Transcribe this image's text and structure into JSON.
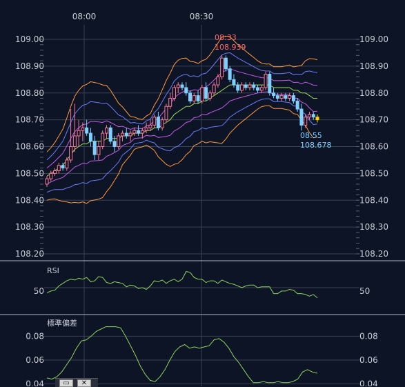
{
  "chart_data": [
    {
      "type": "candlestick",
      "time_labels": [
        "08:00",
        "08:30"
      ],
      "y_ticks": [
        "109.00",
        "108.90",
        "108.80",
        "108.70",
        "108.60",
        "108.50",
        "108.40",
        "108.30",
        "108.20"
      ],
      "ylim": [
        108.2,
        109.02
      ],
      "annotations": [
        {
          "time": "08:33",
          "value": "108.939",
          "color": "#ff6b6b"
        },
        {
          "time": "08:55",
          "value": "108.678",
          "color": "#7fd0ff"
        }
      ],
      "candles": [
        [
          108.46,
          108.49,
          108.45,
          108.48
        ],
        [
          108.48,
          108.51,
          108.47,
          108.5
        ],
        [
          108.5,
          108.52,
          108.49,
          108.51
        ],
        [
          108.51,
          108.54,
          108.5,
          108.53
        ],
        [
          108.53,
          108.54,
          108.51,
          108.52
        ],
        [
          108.52,
          108.56,
          108.51,
          108.55
        ],
        [
          108.55,
          108.74,
          108.54,
          108.6
        ],
        [
          108.6,
          108.76,
          108.58,
          108.64
        ],
        [
          108.64,
          108.7,
          108.6,
          108.66
        ],
        [
          108.66,
          108.69,
          108.62,
          108.67
        ],
        [
          108.67,
          108.7,
          108.64,
          108.65
        ],
        [
          108.65,
          108.67,
          108.6,
          108.62
        ],
        [
          108.62,
          108.64,
          108.55,
          108.57
        ],
        [
          108.57,
          108.62,
          108.55,
          108.6
        ],
        [
          108.6,
          108.66,
          108.59,
          108.65
        ],
        [
          108.65,
          108.68,
          108.63,
          108.67
        ],
        [
          108.67,
          108.68,
          108.61,
          108.62
        ],
        [
          108.62,
          108.64,
          108.58,
          108.6
        ],
        [
          108.6,
          108.65,
          108.59,
          108.64
        ],
        [
          108.64,
          108.66,
          108.62,
          108.65
        ],
        [
          108.65,
          108.67,
          108.63,
          108.64
        ],
        [
          108.64,
          108.66,
          108.62,
          108.65
        ],
        [
          108.65,
          108.67,
          108.64,
          108.66
        ],
        [
          108.66,
          108.68,
          108.64,
          108.65
        ],
        [
          108.65,
          108.67,
          108.63,
          108.66
        ],
        [
          108.66,
          108.69,
          108.65,
          108.67
        ],
        [
          108.67,
          108.7,
          108.66,
          108.68
        ],
        [
          108.68,
          108.72,
          108.67,
          108.71
        ],
        [
          108.71,
          108.73,
          108.66,
          108.67
        ],
        [
          108.67,
          108.71,
          108.66,
          108.7
        ],
        [
          108.7,
          108.76,
          108.69,
          108.75
        ],
        [
          108.75,
          108.8,
          108.74,
          108.78
        ],
        [
          108.78,
          108.83,
          108.77,
          108.82
        ],
        [
          108.82,
          108.84,
          108.8,
          108.83
        ],
        [
          108.83,
          108.84,
          108.81,
          108.82
        ],
        [
          108.82,
          108.84,
          108.79,
          108.8
        ],
        [
          108.8,
          108.81,
          108.76,
          108.77
        ],
        [
          108.77,
          108.8,
          108.76,
          108.79
        ],
        [
          108.79,
          108.81,
          108.76,
          108.77
        ],
        [
          108.77,
          108.83,
          108.76,
          108.82
        ],
        [
          108.82,
          108.84,
          108.77,
          108.78
        ],
        [
          108.78,
          108.81,
          108.77,
          108.8
        ],
        [
          108.8,
          108.84,
          108.79,
          108.83
        ],
        [
          108.83,
          108.87,
          108.82,
          108.86
        ],
        [
          108.86,
          108.94,
          108.85,
          108.93
        ],
        [
          108.93,
          108.94,
          108.88,
          108.89
        ],
        [
          108.89,
          108.9,
          108.84,
          108.85
        ],
        [
          108.85,
          108.87,
          108.82,
          108.83
        ],
        [
          108.83,
          108.84,
          108.8,
          108.81
        ],
        [
          108.81,
          108.84,
          108.8,
          108.83
        ],
        [
          108.83,
          108.84,
          108.81,
          108.82
        ],
        [
          108.82,
          108.84,
          108.81,
          108.83
        ],
        [
          108.83,
          108.84,
          108.81,
          108.82
        ],
        [
          108.82,
          108.83,
          108.8,
          108.81
        ],
        [
          108.81,
          108.83,
          108.8,
          108.82
        ],
        [
          108.82,
          108.88,
          108.81,
          108.87
        ],
        [
          108.87,
          108.88,
          108.79,
          108.8
        ],
        [
          108.8,
          108.82,
          108.78,
          108.79
        ],
        [
          108.79,
          108.8,
          108.77,
          108.78
        ],
        [
          108.78,
          108.8,
          108.77,
          108.79
        ],
        [
          108.79,
          108.8,
          108.77,
          108.78
        ],
        [
          108.78,
          108.8,
          108.77,
          108.79
        ],
        [
          108.79,
          108.8,
          108.76,
          108.77
        ],
        [
          108.77,
          108.78,
          108.73,
          108.74
        ],
        [
          108.74,
          108.76,
          108.66,
          108.68
        ],
        [
          108.68,
          108.72,
          108.67,
          108.71
        ],
        [
          108.71,
          108.73,
          108.7,
          108.72
        ],
        [
          108.72,
          108.73,
          108.7,
          108.71
        ],
        [
          108.71,
          108.72,
          108.69,
          108.7
        ]
      ],
      "bollinger": {
        "mid": [
          108.49,
          108.5,
          108.51,
          108.52,
          108.53,
          108.55,
          108.57,
          108.59,
          108.6,
          108.61,
          108.61,
          108.62,
          108.62,
          108.62,
          108.62,
          108.63,
          108.63,
          108.63,
          108.63,
          108.64,
          108.64,
          108.64,
          108.65,
          108.65,
          108.65,
          108.66,
          108.66,
          108.67,
          108.67,
          108.68,
          108.69,
          108.7,
          108.72,
          108.73,
          108.74,
          108.75,
          108.75,
          108.76,
          108.76,
          108.77,
          108.77,
          108.78,
          108.79,
          108.8,
          108.81,
          108.82,
          108.83,
          108.83,
          108.83,
          108.83,
          108.83,
          108.83,
          108.83,
          108.83,
          108.83,
          108.83,
          108.83,
          108.82,
          108.82,
          108.82,
          108.82,
          108.82,
          108.81,
          108.81,
          108.8,
          108.8,
          108.79,
          108.78,
          108.78
        ],
        "sd": [
          0.03,
          0.032,
          0.035,
          0.04,
          0.045,
          0.052,
          0.06,
          0.066,
          0.07,
          0.072,
          0.074,
          0.074,
          0.073,
          0.072,
          0.07,
          0.066,
          0.06,
          0.052,
          0.044,
          0.036,
          0.03,
          0.024,
          0.02,
          0.018,
          0.017,
          0.018,
          0.021,
          0.028,
          0.036,
          0.044,
          0.052,
          0.058,
          0.062,
          0.064,
          0.063,
          0.06,
          0.056,
          0.052,
          0.05,
          0.05,
          0.052,
          0.054,
          0.058,
          0.062,
          0.066,
          0.064,
          0.06,
          0.055,
          0.05,
          0.046,
          0.042,
          0.038,
          0.034,
          0.03,
          0.027,
          0.026,
          0.026,
          0.026,
          0.026,
          0.026,
          0.027,
          0.028,
          0.029,
          0.03,
          0.034,
          0.04,
          0.046,
          0.049,
          0.048
        ]
      }
    },
    {
      "type": "line",
      "label": "RSI",
      "y_ticks": [
        "50"
      ],
      "ylim": [
        20,
        80
      ],
      "values": [
        44,
        46,
        47,
        52,
        55,
        58,
        60,
        59,
        61,
        60,
        62,
        57,
        58,
        63,
        62,
        56,
        55,
        57,
        56,
        55,
        51,
        53,
        52,
        49,
        50,
        48,
        52,
        58,
        57,
        59,
        55,
        58,
        60,
        57,
        60,
        69,
        68,
        62,
        60,
        60,
        56,
        58,
        58,
        55,
        59,
        57,
        55,
        54,
        52,
        50,
        52,
        53,
        53,
        50,
        51,
        51,
        51,
        43,
        43,
        46,
        46,
        48,
        47,
        43,
        43,
        42,
        40,
        42,
        38
      ]
    },
    {
      "type": "line",
      "label": "標準偏差",
      "y_ticks": [
        "0.08",
        "0.06",
        "0.04"
      ],
      "ylim": [
        0.038,
        0.097
      ],
      "values": [
        0.045,
        0.044,
        0.046,
        0.05,
        0.056,
        0.062,
        0.07,
        0.076,
        0.077,
        0.08,
        0.084,
        0.086,
        0.088,
        0.088,
        0.088,
        0.087,
        0.08,
        0.072,
        0.064,
        0.055,
        0.048,
        0.043,
        0.042,
        0.046,
        0.052,
        0.06,
        0.067,
        0.071,
        0.073,
        0.07,
        0.071,
        0.07,
        0.071,
        0.072,
        0.077,
        0.078,
        0.075,
        0.07,
        0.063,
        0.058,
        0.052,
        0.046,
        0.041,
        0.041,
        0.042,
        0.041,
        0.041,
        0.042,
        0.041,
        0.041,
        0.042,
        0.044,
        0.05,
        0.052,
        0.05,
        0.049
      ]
    }
  ]
}
